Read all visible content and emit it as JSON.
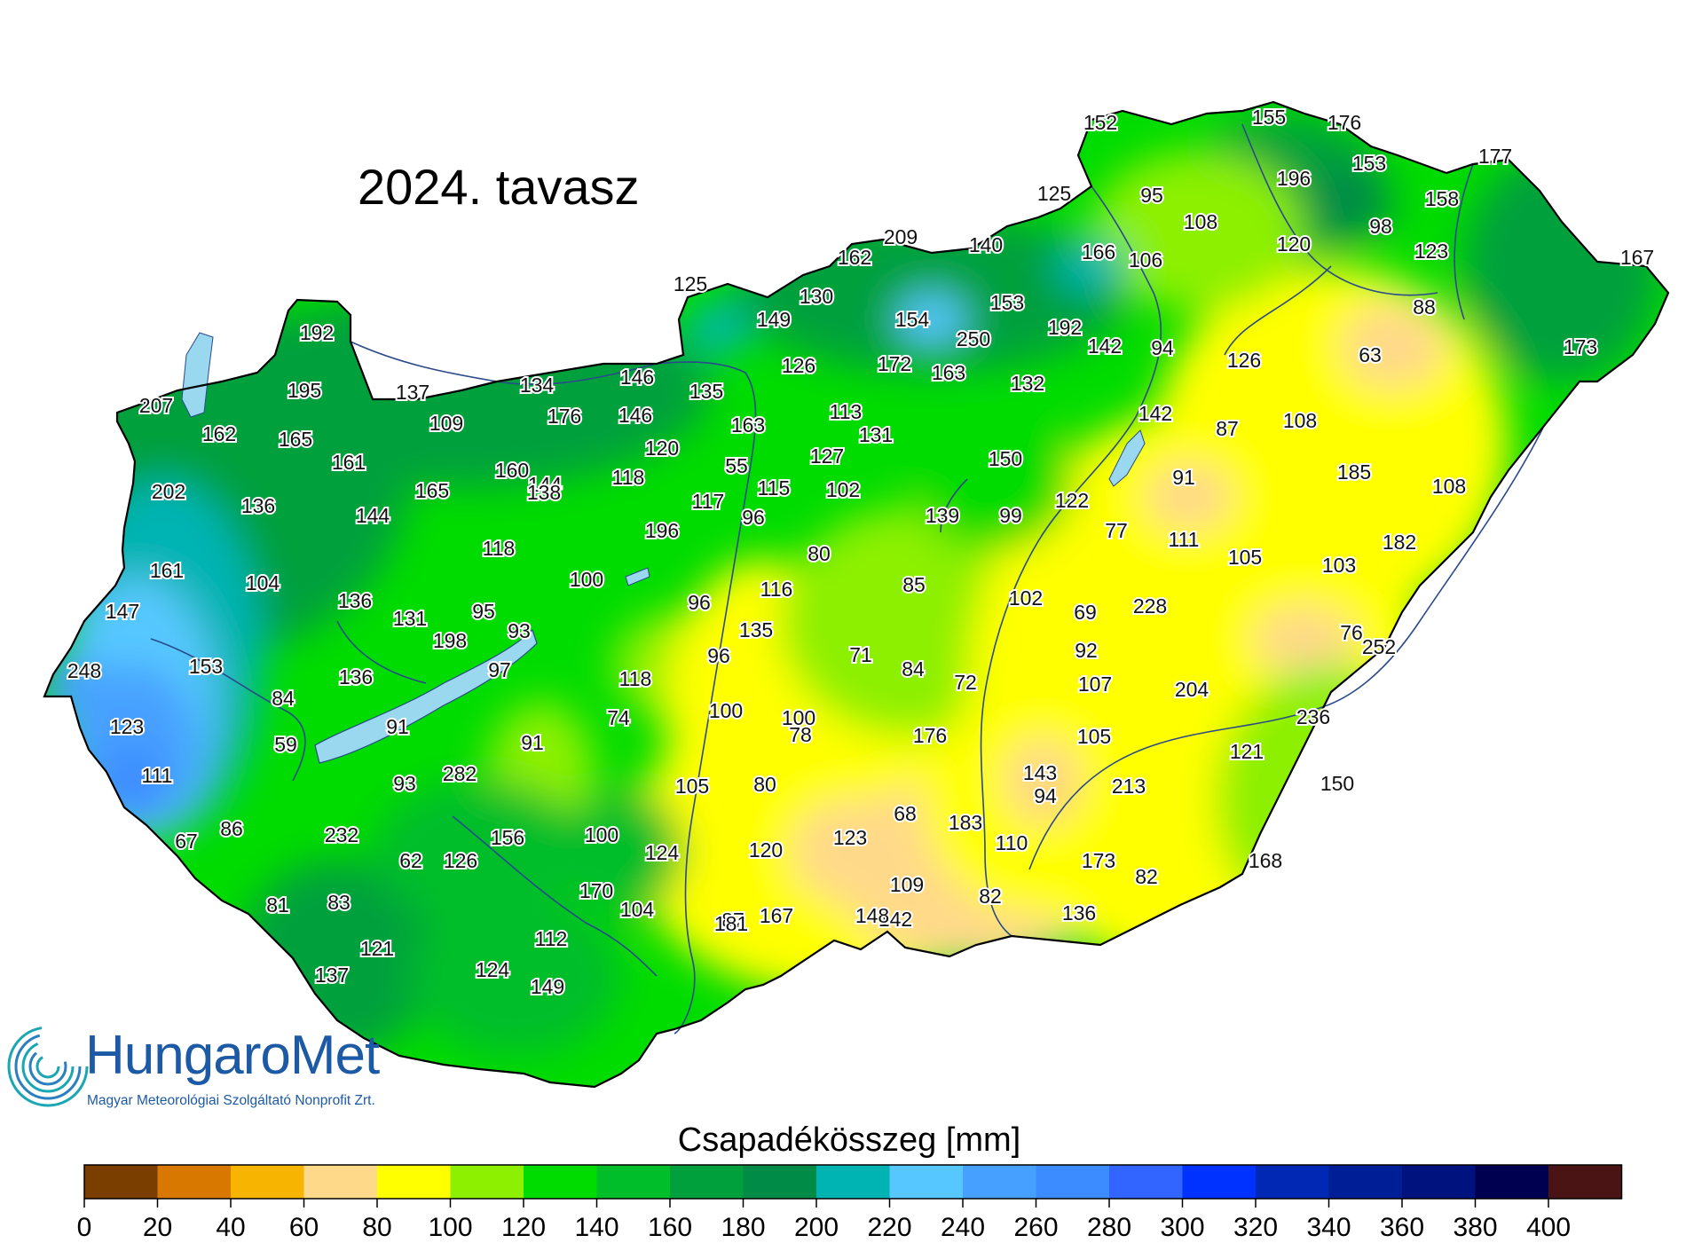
{
  "title": "2024. tavasz",
  "legend": {
    "title": "Csapadékösszeg [mm]",
    "ticks": [
      "0",
      "20",
      "40",
      "60",
      "80",
      "100",
      "120",
      "140",
      "160",
      "180",
      "200",
      "220",
      "240",
      "260",
      "280",
      "300",
      "320",
      "340",
      "360",
      "380",
      "400"
    ],
    "colors": [
      "#7a3e00",
      "#d87800",
      "#f7b400",
      "#ffd98a",
      "#ffff00",
      "#8cf000",
      "#00dc00",
      "#00be2a",
      "#00a03c",
      "#008c46",
      "#00b4b4",
      "#56c8ff",
      "#46a0ff",
      "#3c8cff",
      "#3264ff",
      "#0032ff",
      "#0028b4",
      "#001e96",
      "#00127d",
      "#000050",
      "#4b1414"
    ]
  },
  "logo": {
    "name": "HungaroMet",
    "subtitle": "Magyar Meteorológiai Szolgáltató Nonprofit Zrt."
  },
  "stations": [
    {
      "v": "152"
    },
    {
      "v": "155"
    },
    {
      "v": "176"
    },
    {
      "v": "177"
    },
    {
      "v": "196"
    },
    {
      "v": "153"
    },
    {
      "v": "125"
    },
    {
      "v": "95"
    },
    {
      "v": "108"
    },
    {
      "v": "158"
    },
    {
      "v": "98"
    },
    {
      "v": "120"
    },
    {
      "v": "123"
    },
    {
      "v": "167"
    },
    {
      "v": "209"
    },
    {
      "v": "162"
    },
    {
      "v": "140"
    },
    {
      "v": "166"
    },
    {
      "v": "106"
    },
    {
      "v": "88"
    },
    {
      "v": "125"
    },
    {
      "v": "130"
    },
    {
      "v": "149"
    },
    {
      "v": "154"
    },
    {
      "v": "153"
    },
    {
      "v": "250"
    },
    {
      "v": "192"
    },
    {
      "v": "142"
    },
    {
      "v": "94"
    },
    {
      "v": "63"
    },
    {
      "v": "173"
    },
    {
      "v": "192"
    },
    {
      "v": "146"
    },
    {
      "v": "135"
    },
    {
      "v": "126"
    },
    {
      "v": "172"
    },
    {
      "v": "163"
    },
    {
      "v": "132"
    },
    {
      "v": "126"
    },
    {
      "v": "207"
    },
    {
      "v": "195"
    },
    {
      "v": "137"
    },
    {
      "v": "134"
    },
    {
      "v": "109"
    },
    {
      "v": "176"
    },
    {
      "v": "146"
    },
    {
      "v": "163"
    },
    {
      "v": "113"
    },
    {
      "v": "131"
    },
    {
      "v": "142"
    },
    {
      "v": "87"
    },
    {
      "v": "108"
    },
    {
      "v": "162"
    },
    {
      "v": "165"
    },
    {
      "v": "120"
    },
    {
      "v": "127"
    },
    {
      "v": "150"
    },
    {
      "v": "161"
    },
    {
      "v": "160"
    },
    {
      "v": "144"
    },
    {
      "v": "118"
    },
    {
      "v": "55"
    },
    {
      "v": "91"
    },
    {
      "v": "185"
    },
    {
      "v": "202"
    },
    {
      "v": "136"
    },
    {
      "v": "165"
    },
    {
      "v": "138"
    },
    {
      "v": "115"
    },
    {
      "v": "102"
    },
    {
      "v": "122"
    },
    {
      "v": "108"
    },
    {
      "v": "144"
    },
    {
      "v": "117"
    },
    {
      "v": "96"
    },
    {
      "v": "139"
    },
    {
      "v": "99"
    },
    {
      "v": "77"
    },
    {
      "v": "111"
    },
    {
      "v": "196"
    },
    {
      "v": "161"
    },
    {
      "v": "118"
    },
    {
      "v": "80"
    },
    {
      "v": "105"
    },
    {
      "v": "182"
    },
    {
      "v": "104"
    },
    {
      "v": "100"
    },
    {
      "v": "116"
    },
    {
      "v": "85"
    },
    {
      "v": "103"
    },
    {
      "v": "102"
    },
    {
      "v": "69"
    },
    {
      "v": "228"
    },
    {
      "v": "147"
    },
    {
      "v": "136"
    },
    {
      "v": "131"
    },
    {
      "v": "95"
    },
    {
      "v": "96"
    },
    {
      "v": "93"
    },
    {
      "v": "135"
    },
    {
      "v": "76"
    },
    {
      "v": "198"
    },
    {
      "v": "92"
    },
    {
      "v": "96"
    },
    {
      "v": "71"
    },
    {
      "v": "252"
    },
    {
      "v": "248"
    },
    {
      "v": "153"
    },
    {
      "v": "136"
    },
    {
      "v": "97"
    },
    {
      "v": "118"
    },
    {
      "v": "84"
    },
    {
      "v": "72"
    },
    {
      "v": "107"
    },
    {
      "v": "204"
    },
    {
      "v": "84"
    },
    {
      "v": "100"
    },
    {
      "v": "100"
    },
    {
      "v": "236"
    },
    {
      "v": "123"
    },
    {
      "v": "91"
    },
    {
      "v": "91"
    },
    {
      "v": "74"
    },
    {
      "v": "78"
    },
    {
      "v": "176"
    },
    {
      "v": "105"
    },
    {
      "v": "121"
    },
    {
      "v": "59"
    },
    {
      "v": "282"
    },
    {
      "v": "143"
    },
    {
      "v": "111"
    },
    {
      "v": "93"
    },
    {
      "v": "105"
    },
    {
      "v": "80"
    },
    {
      "v": "213"
    },
    {
      "v": "150"
    },
    {
      "v": "94"
    },
    {
      "v": "86"
    },
    {
      "v": "232"
    },
    {
      "v": "156"
    },
    {
      "v": "68"
    },
    {
      "v": "67"
    },
    {
      "v": "100"
    },
    {
      "v": "183"
    },
    {
      "v": "123"
    },
    {
      "v": "110"
    },
    {
      "v": "62"
    },
    {
      "v": "126"
    },
    {
      "v": "124"
    },
    {
      "v": "120"
    },
    {
      "v": "173"
    },
    {
      "v": "82"
    },
    {
      "v": "168"
    },
    {
      "v": "170"
    },
    {
      "v": "109"
    },
    {
      "v": "81"
    },
    {
      "v": "83"
    },
    {
      "v": "104"
    },
    {
      "v": "82"
    },
    {
      "v": "87"
    },
    {
      "v": "142"
    },
    {
      "v": "181"
    },
    {
      "v": "167"
    },
    {
      "v": "148"
    },
    {
      "v": "136"
    },
    {
      "v": "112"
    },
    {
      "v": "121"
    },
    {
      "v": "124"
    },
    {
      "v": "149"
    },
    {
      "v": "137"
    }
  ]
}
